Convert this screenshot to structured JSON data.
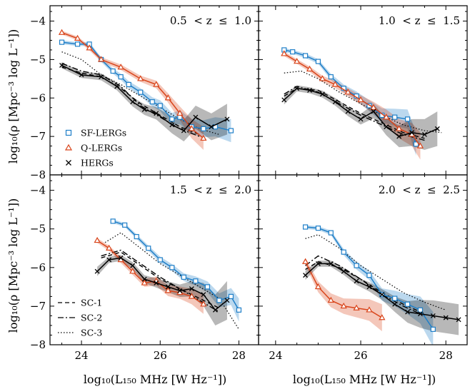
{
  "figure": {
    "ylabel": "log₁₀(ρ [Mpc⁻³ log L⁻¹])",
    "xlabel": "log₁₀(L₁₅₀ MHz [W Hz⁻¹])"
  },
  "legend_samples": [
    {
      "name": "SF-LERGs",
      "color": "#1f7fc8",
      "marker": "square"
    },
    {
      "name": "Q-LERGs",
      "color": "#d9441a",
      "marker": "triangle"
    },
    {
      "name": "HERGs",
      "color": "#000000",
      "marker": "x"
    }
  ],
  "legend_models": [
    {
      "name": "SC-1",
      "dash": "dashed"
    },
    {
      "name": "SC-2",
      "dash": "dashdot"
    },
    {
      "name": "SC-3",
      "dash": "dotted"
    }
  ],
  "chart_data": [
    {
      "type": "line",
      "title": "0.5  < z  ≤  1.0",
      "xlim": [
        23.2,
        28.5
      ],
      "ylim": [
        -8,
        -3.6
      ],
      "xticks": [
        "24",
        "26",
        "28"
      ],
      "yticks": [
        "−4",
        "−5",
        "−6",
        "−7",
        "−8"
      ],
      "series": [
        {
          "name": "SF-LERGs",
          "x": [
            23.5,
            23.9,
            24.2,
            24.5,
            24.8,
            25.0,
            25.2,
            25.5,
            25.8,
            26.0,
            26.3,
            26.5,
            26.8,
            27.1,
            27.4,
            27.8
          ],
          "y": [
            -4.55,
            -4.6,
            -4.6,
            -5.0,
            -5.3,
            -5.45,
            -5.65,
            -5.85,
            -6.1,
            -6.2,
            -6.55,
            -6.5,
            -6.75,
            -6.8,
            -6.75,
            -6.85
          ],
          "err": [
            0.05,
            0.05,
            0.05,
            0.06,
            0.07,
            0.08,
            0.09,
            0.1,
            0.12,
            0.14,
            0.16,
            0.18,
            0.2,
            0.22,
            0.25,
            0.3
          ]
        },
        {
          "name": "Q-LERGs",
          "x": [
            23.5,
            23.9,
            24.2,
            24.5,
            25.0,
            25.5,
            25.9,
            26.2,
            26.5,
            26.8,
            27.1
          ],
          "y": [
            -4.3,
            -4.45,
            -4.7,
            -5.0,
            -5.2,
            -5.5,
            -5.65,
            -6.0,
            -6.4,
            -6.8,
            -7.05
          ],
          "err": [
            0.05,
            0.05,
            0.06,
            0.06,
            0.07,
            0.08,
            0.1,
            0.12,
            0.18,
            0.25,
            0.3
          ]
        },
        {
          "name": "HERGs",
          "x": [
            23.5,
            24.0,
            24.5,
            24.9,
            25.3,
            25.6,
            25.9,
            26.3,
            26.6,
            26.9,
            27.3,
            27.7
          ],
          "y": [
            -5.15,
            -5.4,
            -5.45,
            -5.7,
            -6.1,
            -6.3,
            -6.4,
            -6.7,
            -6.85,
            -6.5,
            -6.75,
            -6.55
          ],
          "err": [
            0.08,
            0.08,
            0.09,
            0.1,
            0.12,
            0.14,
            0.16,
            0.22,
            0.28,
            0.3,
            0.35,
            0.4
          ]
        },
        {
          "name": "SC-1 HERGs",
          "x": [
            23.5,
            24.0,
            24.5,
            25.0,
            25.5,
            26.0,
            26.5,
            27.0
          ],
          "y": [
            -5.2,
            -5.35,
            -5.45,
            -5.75,
            -6.15,
            -6.45,
            -6.75,
            -6.95
          ]
        },
        {
          "name": "SC-2 HERGs",
          "x": [
            23.5,
            24.0,
            24.5,
            25.0,
            25.5,
            26.0,
            26.5,
            27.0
          ],
          "y": [
            -5.1,
            -5.3,
            -5.4,
            -5.7,
            -6.2,
            -6.5,
            -6.8,
            -7.0
          ]
        },
        {
          "name": "SC-3 all",
          "x": [
            23.5,
            24.0,
            24.5,
            25.0,
            25.5,
            26.0,
            26.5,
            27.0,
            27.5
          ],
          "y": [
            -4.8,
            -5.0,
            -5.4,
            -5.65,
            -5.95,
            -6.25,
            -6.55,
            -6.8,
            -6.95
          ]
        }
      ]
    },
    {
      "type": "line",
      "title": "1.0  < z  ≤  1.5",
      "xlim": [
        23.6,
        28.5
      ],
      "ylim": [
        -8,
        -3.6
      ],
      "xticks": [
        "24",
        "26",
        "28"
      ],
      "yticks": [],
      "series": [
        {
          "name": "SF-LERGs",
          "x": [
            24.2,
            24.4,
            24.7,
            25.0,
            25.3,
            25.6,
            25.9,
            26.2,
            26.5,
            26.8,
            27.1,
            27.3
          ],
          "y": [
            -4.75,
            -4.8,
            -4.9,
            -5.05,
            -5.45,
            -5.75,
            -5.95,
            -6.2,
            -6.45,
            -6.5,
            -6.55,
            -7.2
          ],
          "err": [
            0.05,
            0.05,
            0.06,
            0.06,
            0.08,
            0.1,
            0.12,
            0.14,
            0.18,
            0.22,
            0.25,
            0.3
          ]
        },
        {
          "name": "Q-LERGs",
          "x": [
            24.2,
            24.5,
            24.8,
            25.1,
            25.4,
            25.7,
            26.0,
            26.3,
            26.6,
            26.9,
            27.2,
            27.4
          ],
          "y": [
            -4.85,
            -5.05,
            -5.25,
            -5.5,
            -5.65,
            -5.85,
            -6.05,
            -6.25,
            -6.5,
            -6.8,
            -6.95,
            -7.25
          ],
          "err": [
            0.06,
            0.06,
            0.07,
            0.08,
            0.09,
            0.1,
            0.12,
            0.15,
            0.2,
            0.25,
            0.3,
            0.35
          ]
        },
        {
          "name": "HERGs",
          "x": [
            24.2,
            24.5,
            24.8,
            25.1,
            25.4,
            25.7,
            26.0,
            26.3,
            26.6,
            26.9,
            27.2,
            27.5,
            27.8
          ],
          "y": [
            -6.05,
            -5.75,
            -5.8,
            -5.9,
            -6.1,
            -6.35,
            -6.55,
            -6.35,
            -6.75,
            -7.0,
            -6.9,
            -6.95,
            -6.8
          ],
          "err": [
            0.12,
            0.08,
            0.08,
            0.09,
            0.1,
            0.12,
            0.14,
            0.18,
            0.22,
            0.28,
            0.35,
            0.4,
            0.45
          ]
        },
        {
          "name": "SC-1 HERGs",
          "x": [
            24.2,
            24.5,
            25.0,
            25.5,
            26.0,
            26.5,
            27.0,
            27.5
          ],
          "y": [
            -5.95,
            -5.75,
            -5.8,
            -6.1,
            -6.4,
            -6.65,
            -6.9,
            -7.05
          ]
        },
        {
          "name": "SC-2 HERGs",
          "x": [
            24.2,
            24.5,
            25.0,
            25.5,
            26.0,
            26.5,
            27.0,
            27.5
          ],
          "y": [
            -5.9,
            -5.7,
            -5.85,
            -6.15,
            -6.45,
            -6.7,
            -6.95,
            -7.1
          ]
        },
        {
          "name": "SC-3 all",
          "x": [
            24.2,
            24.6,
            25.0,
            25.5,
            26.0,
            26.5,
            27.0,
            27.5,
            27.9
          ],
          "y": [
            -5.35,
            -5.3,
            -5.5,
            -5.85,
            -6.15,
            -6.45,
            -6.7,
            -6.85,
            -6.9
          ]
        }
      ]
    },
    {
      "type": "line",
      "title": "1.5  < z  ≤  2.0",
      "xlim": [
        23.2,
        28.5
      ],
      "ylim": [
        -8,
        -3.6
      ],
      "xticks": [
        "24",
        "26",
        "28"
      ],
      "yticks": [
        "−4",
        "−5",
        "−6",
        "−7",
        "−8"
      ],
      "series": [
        {
          "name": "SF-LERGs",
          "x": [
            24.8,
            25.1,
            25.4,
            25.7,
            26.0,
            26.3,
            26.6,
            26.9,
            27.2,
            27.5,
            27.8,
            28.0
          ],
          "y": [
            -4.8,
            -4.9,
            -5.2,
            -5.5,
            -5.8,
            -6.0,
            -6.25,
            -6.35,
            -6.5,
            -6.85,
            -6.75,
            -7.1
          ],
          "err": [
            0.05,
            0.05,
            0.06,
            0.07,
            0.08,
            0.09,
            0.1,
            0.12,
            0.14,
            0.18,
            0.22,
            0.3
          ]
        },
        {
          "name": "Q-LERGs",
          "x": [
            24.4,
            24.7,
            25.0,
            25.3,
            25.6,
            25.9,
            26.2,
            26.5,
            26.8,
            27.1
          ],
          "y": [
            -5.3,
            -5.5,
            -5.8,
            -6.1,
            -6.4,
            -6.35,
            -6.6,
            -6.65,
            -6.75,
            -6.95
          ],
          "err": [
            0.06,
            0.07,
            0.08,
            0.09,
            0.1,
            0.12,
            0.14,
            0.16,
            0.2,
            0.25
          ]
        },
        {
          "name": "HERGs",
          "x": [
            24.4,
            24.7,
            25.0,
            25.3,
            25.6,
            25.9,
            26.2,
            26.5,
            26.8,
            27.1,
            27.4,
            27.7
          ],
          "y": [
            -6.1,
            -5.8,
            -5.75,
            -5.95,
            -6.3,
            -6.4,
            -6.5,
            -6.6,
            -6.55,
            -6.7,
            -7.1,
            -6.85
          ],
          "err": [
            0.12,
            0.08,
            0.08,
            0.09,
            0.1,
            0.12,
            0.14,
            0.16,
            0.2,
            0.3,
            0.4,
            0.5
          ]
        },
        {
          "name": "SC-1 HERGs",
          "x": [
            24.5,
            25.0,
            25.5,
            26.0,
            26.5,
            27.0,
            27.5
          ],
          "y": [
            -5.75,
            -5.6,
            -5.95,
            -6.3,
            -6.55,
            -6.8,
            -7.05
          ]
        },
        {
          "name": "SC-2 HERGs",
          "x": [
            24.5,
            25.0,
            25.5,
            26.0,
            26.5,
            27.0,
            27.5
          ],
          "y": [
            -5.7,
            -5.55,
            -5.9,
            -6.25,
            -6.55,
            -6.85,
            -7.15
          ]
        },
        {
          "name": "SC-3 all",
          "x": [
            24.6,
            25.0,
            25.5,
            26.0,
            26.5,
            27.0,
            27.5,
            28.0
          ],
          "y": [
            -5.35,
            -5.1,
            -5.5,
            -5.9,
            -6.2,
            -6.5,
            -6.8,
            -7.6
          ]
        }
      ]
    },
    {
      "type": "line",
      "title": "2.0  < z  ≤  2.5",
      "xlim": [
        23.6,
        28.5
      ],
      "ylim": [
        -8,
        -3.6
      ],
      "xticks": [
        "24",
        "26",
        "28"
      ],
      "yticks": [],
      "series": [
        {
          "name": "SF-LERGs",
          "x": [
            24.7,
            25.0,
            25.3,
            25.6,
            25.9,
            26.2,
            26.5,
            26.8,
            27.1,
            27.4,
            27.7
          ],
          "y": [
            -4.95,
            -4.98,
            -5.1,
            -5.6,
            -5.95,
            -6.2,
            -6.7,
            -6.8,
            -6.95,
            -7.1,
            -7.6
          ],
          "err": [
            0.05,
            0.05,
            0.06,
            0.08,
            0.1,
            0.12,
            0.16,
            0.2,
            0.26,
            0.35,
            0.45
          ]
        },
        {
          "name": "Q-LERGs",
          "x": [
            24.7,
            25.0,
            25.3,
            25.6,
            25.9,
            26.2,
            26.5
          ],
          "y": [
            -5.85,
            -6.5,
            -6.85,
            -7.0,
            -7.05,
            -7.1,
            -7.3
          ],
          "err": [
            0.1,
            0.14,
            0.18,
            0.2,
            0.24,
            0.28,
            0.35
          ]
        },
        {
          "name": "HERGs",
          "x": [
            24.7,
            25.0,
            25.3,
            25.6,
            25.9,
            26.2,
            26.5,
            26.8,
            27.1,
            27.4,
            27.7,
            28.0,
            28.3
          ],
          "y": [
            -6.2,
            -5.9,
            -5.9,
            -6.1,
            -6.35,
            -6.5,
            -6.7,
            -6.95,
            -7.15,
            -7.2,
            -7.25,
            -7.3,
            -7.35
          ],
          "err": [
            0.12,
            0.08,
            0.08,
            0.09,
            0.1,
            0.12,
            0.14,
            0.2,
            0.28,
            0.36,
            0.4,
            0.4,
            0.4
          ]
        },
        {
          "name": "SC-1 HERGs",
          "x": [
            24.7,
            25.0,
            25.5,
            26.0,
            26.5,
            27.0,
            27.5
          ],
          "y": [
            -6.05,
            -5.85,
            -6.0,
            -6.3,
            -6.65,
            -6.95,
            -7.2
          ]
        },
        {
          "name": "SC-2 HERGs",
          "x": [
            24.7,
            25.0,
            25.5,
            26.0,
            26.5,
            27.0,
            27.5
          ],
          "y": [
            -5.95,
            -5.7,
            -5.95,
            -6.3,
            -6.7,
            -7.0,
            -7.25
          ]
        },
        {
          "name": "SC-3 all",
          "x": [
            24.7,
            25.0,
            25.5,
            26.0,
            26.5,
            27.0,
            27.5,
            28.0
          ],
          "y": [
            -5.25,
            -5.15,
            -5.5,
            -5.95,
            -6.3,
            -6.65,
            -6.9,
            -7.1
          ]
        }
      ]
    }
  ]
}
